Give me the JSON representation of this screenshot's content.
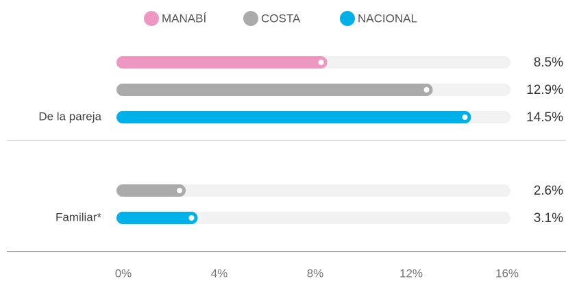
{
  "chart_data": {
    "type": "hbar",
    "categories": [
      "De la pareja",
      "Familiar*"
    ],
    "series": [
      {
        "name": "MANABÍ",
        "color": "#ee97c2",
        "values": [
          8.5,
          null
        ],
        "value_labels": [
          "8.5%",
          null
        ]
      },
      {
        "name": "COSTA",
        "color": "#aaaaaa",
        "values": [
          12.9,
          2.6
        ],
        "value_labels": [
          "12.9%",
          "2.6%"
        ]
      },
      {
        "name": "NACIONAL",
        "color": "#00b0e8",
        "values": [
          14.5,
          3.1
        ],
        "value_labels": [
          "14.5%",
          "3.1%"
        ]
      }
    ],
    "xlim": [
      0,
      16
    ],
    "xticks": [
      {
        "value": 0,
        "label": "0%"
      },
      {
        "value": 4,
        "label": "4%"
      },
      {
        "value": 8,
        "label": "8%"
      },
      {
        "value": 12,
        "label": "12%"
      },
      {
        "value": 16,
        "label": "16%"
      }
    ],
    "legend": "top"
  }
}
